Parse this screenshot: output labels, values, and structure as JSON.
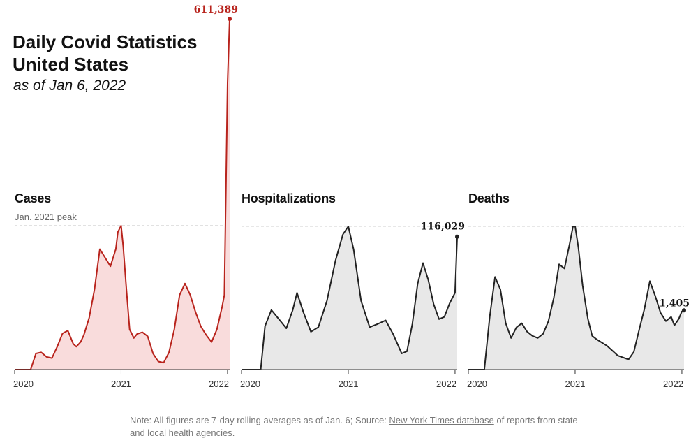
{
  "header": {
    "title_line1": "Daily Covid Statistics",
    "title_line2": "United States",
    "subtitle": "as of Jan 6, 2022"
  },
  "reference_label": "Jan. 2021 peak",
  "note": {
    "prefix": "Note: All figures are 7-day rolling averages as of Jan. 6; Source: ",
    "link_text": "New York Times database",
    "suffix": " of reports from state and local health agencies."
  },
  "colors": {
    "cases_line": "#b8231c",
    "cases_fill": "#f9dcdc",
    "other_line": "#222222",
    "other_fill": "#e8e8e8",
    "peak_line": "#cfcfcf"
  },
  "chart_data": [
    {
      "type": "area",
      "title": "Cases",
      "x_tick_labels": [
        "2020",
        "2021",
        "2022"
      ],
      "x_range": [
        2020.0,
        2022.02
      ],
      "ylim": [
        0,
        611389
      ],
      "reference": {
        "label": "Jan. 2021 peak",
        "value": 251000
      },
      "last_value_label": "611,389",
      "color": "#b8231c",
      "x": [
        2020.0,
        2020.15,
        2020.2,
        2020.25,
        2020.3,
        2020.35,
        2020.4,
        2020.45,
        2020.5,
        2020.55,
        2020.58,
        2020.62,
        2020.65,
        2020.7,
        2020.75,
        2020.8,
        2020.85,
        2020.9,
        2020.95,
        2020.97,
        2021.0,
        2021.02,
        2021.05,
        2021.08,
        2021.12,
        2021.15,
        2021.2,
        2021.25,
        2021.3,
        2021.35,
        2021.4,
        2021.45,
        2021.5,
        2021.55,
        2021.6,
        2021.65,
        2021.7,
        2021.75,
        2021.8,
        2021.85,
        2021.9,
        2021.95,
        2021.97,
        2022.0,
        2022.02
      ],
      "values": [
        0,
        0,
        28000,
        30000,
        22000,
        20000,
        40000,
        63000,
        68000,
        45000,
        40000,
        48000,
        60000,
        90000,
        140000,
        210000,
        195000,
        180000,
        210000,
        240000,
        251000,
        215000,
        140000,
        70000,
        55000,
        62000,
        65000,
        58000,
        28000,
        14000,
        12000,
        30000,
        70000,
        130000,
        150000,
        130000,
        100000,
        75000,
        60000,
        48000,
        70000,
        110000,
        130000,
        500000,
        611389
      ]
    },
    {
      "type": "area",
      "title": "Hospitalizations",
      "x_tick_labels": [
        "2020",
        "2021",
        "2022"
      ],
      "x_range": [
        2020.0,
        2022.02
      ],
      "ylim": [
        0,
        125000
      ],
      "reference": {
        "label": "Jan. 2021 peak",
        "value": 125000
      },
      "last_value_label": "116,029",
      "color": "#222222",
      "x": [
        2020.0,
        2020.18,
        2020.22,
        2020.28,
        2020.35,
        2020.42,
        2020.48,
        2020.52,
        2020.58,
        2020.65,
        2020.72,
        2020.8,
        2020.88,
        2020.95,
        2021.0,
        2021.05,
        2021.12,
        2021.2,
        2021.28,
        2021.35,
        2021.42,
        2021.5,
        2021.55,
        2021.6,
        2021.65,
        2021.7,
        2021.75,
        2021.8,
        2021.85,
        2021.9,
        2021.95,
        2022.0,
        2022.02
      ],
      "values": [
        0,
        0,
        38000,
        52000,
        44000,
        36000,
        52000,
        67000,
        50000,
        33000,
        37000,
        60000,
        95000,
        118000,
        125000,
        105000,
        60000,
        37000,
        40000,
        43000,
        31000,
        14000,
        16000,
        40000,
        75000,
        93000,
        78000,
        57000,
        44000,
        46000,
        58000,
        67000,
        116029
      ]
    },
    {
      "type": "area",
      "title": "Deaths",
      "x_tick_labels": [
        "2020",
        "2021",
        "2022"
      ],
      "x_range": [
        2020.0,
        2022.02
      ],
      "ylim": [
        0,
        3400
      ],
      "reference": {
        "label": "Jan. 2021 peak",
        "value": 3400
      },
      "last_value_label": "1,405",
      "color": "#222222",
      "x": [
        2020.0,
        2020.15,
        2020.2,
        2020.25,
        2020.3,
        2020.35,
        2020.4,
        2020.45,
        2020.5,
        2020.55,
        2020.6,
        2020.65,
        2020.7,
        2020.75,
        2020.8,
        2020.85,
        2020.9,
        2020.95,
        2020.98,
        2021.0,
        2021.03,
        2021.07,
        2021.12,
        2021.16,
        2021.2,
        2021.3,
        2021.4,
        2021.5,
        2021.55,
        2021.6,
        2021.65,
        2021.7,
        2021.75,
        2021.8,
        2021.85,
        2021.9,
        2021.93,
        2021.97,
        2022.0,
        2022.02
      ],
      "values": [
        0,
        0,
        1250,
        2200,
        1900,
        1100,
        750,
        1000,
        1100,
        900,
        800,
        750,
        850,
        1150,
        1700,
        2500,
        2400,
        3000,
        3400,
        3400,
        2900,
        2000,
        1200,
        800,
        720,
        560,
        330,
        240,
        420,
        950,
        1450,
        2100,
        1750,
        1350,
        1150,
        1250,
        1050,
        1200,
        1380,
        1405
      ]
    }
  ]
}
